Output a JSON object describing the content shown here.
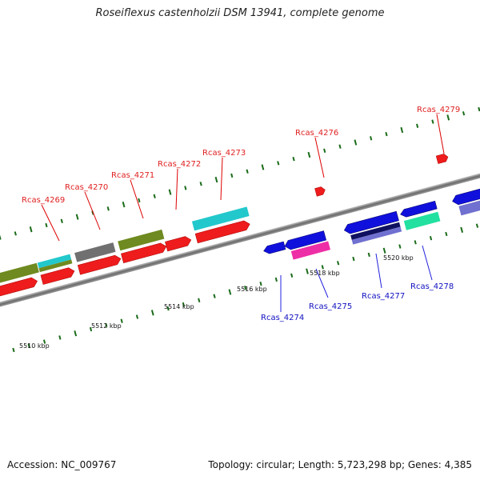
{
  "title": "Roseiflexus castenholzii DSM 13941, complete genome",
  "footer": {
    "accession": "Accession: NC_009767",
    "summary": "Topology: circular; Length: 5,723,298 bp; Genes: 4,385"
  },
  "ticks": [
    {
      "label": "5510 kbp"
    },
    {
      "label": "5512 kbp"
    },
    {
      "label": "5514 kbp"
    },
    {
      "label": "5516 kbp"
    },
    {
      "label": "5518 kbp"
    },
    {
      "label": "5520 kbp"
    }
  ],
  "genes": [
    {
      "name": "Rcas_4269",
      "color": "#e02020"
    },
    {
      "name": "Rcas_4270",
      "color": "#e02020"
    },
    {
      "name": "Rcas_4271",
      "color": "#e02020"
    },
    {
      "name": "Rcas_4272",
      "color": "#e02020"
    },
    {
      "name": "Rcas_4273",
      "color": "#e02020"
    },
    {
      "name": "Rcas_4274",
      "color": "#1010c0"
    },
    {
      "name": "Rcas_4275",
      "color": "#1010c0"
    },
    {
      "name": "Rcas_4276",
      "color": "#e02020"
    },
    {
      "name": "Rcas_4277",
      "color": "#1010c0"
    },
    {
      "name": "Rcas_4278",
      "color": "#1010c0"
    },
    {
      "name": "Rcas_4279",
      "color": "#e02020"
    }
  ]
}
